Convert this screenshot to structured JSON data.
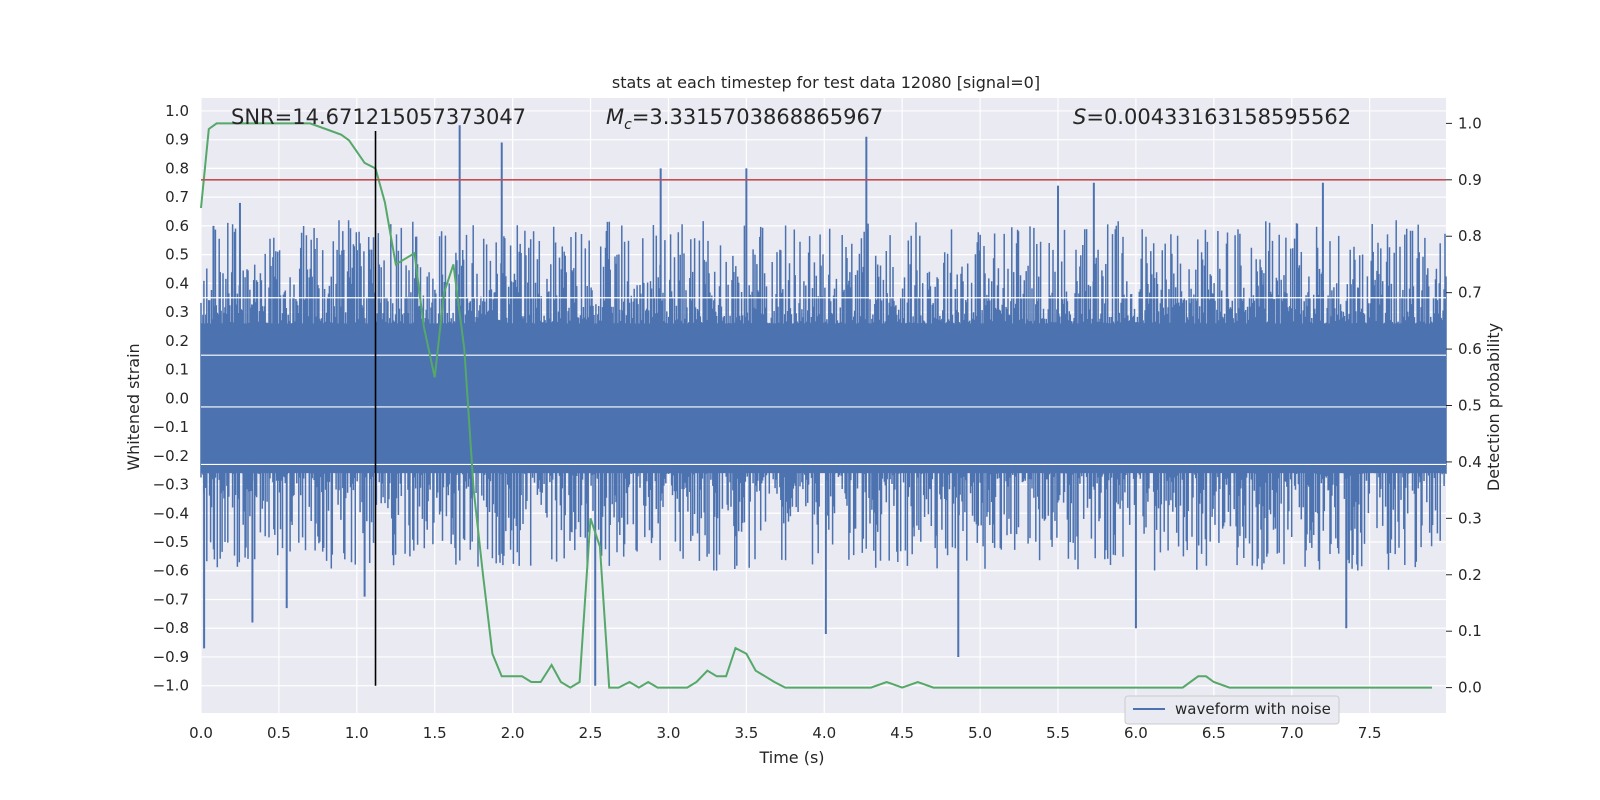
{
  "chart_data": {
    "type": "line",
    "title": "stats at each timestep for test data 12080 [signal=0]",
    "xlabel": "Time (s)",
    "ylabel": "Whitened strain",
    "y2label": "Detection probability",
    "xlim": [
      0.0,
      7.99
    ],
    "ylim": [
      -1.095,
      1.045
    ],
    "y2lim": [
      -0.045,
      1.045
    ],
    "x_ticks": [
      "0.0",
      "0.5",
      "1.0",
      "1.5",
      "2.0",
      "2.5",
      "3.0",
      "3.5",
      "4.0",
      "4.5",
      "5.0",
      "5.5",
      "6.0",
      "6.5",
      "7.0",
      "7.5"
    ],
    "x_tick_values": [
      0.0,
      0.5,
      1.0,
      1.5,
      2.0,
      2.5,
      3.0,
      3.5,
      4.0,
      4.5,
      5.0,
      5.5,
      6.0,
      6.5,
      7.0,
      7.5
    ],
    "y_ticks": [
      "1.0",
      "0.9",
      "0.8",
      "0.7",
      "0.6",
      "0.5",
      "0.4",
      "0.3",
      "0.2",
      "0.1",
      "0.0",
      "−0.1",
      "−0.2",
      "−0.3",
      "−0.4",
      "−0.5",
      "−0.6",
      "−0.7",
      "−0.8",
      "−0.9",
      "−1.0"
    ],
    "y_tick_values": [
      1.0,
      0.9,
      0.8,
      0.7,
      0.6,
      0.5,
      0.4,
      0.3,
      0.2,
      0.1,
      0.0,
      -0.1,
      -0.2,
      -0.3,
      -0.4,
      -0.5,
      -0.6,
      -0.7,
      -0.8,
      -0.9,
      -1.0
    ],
    "y2_ticks": [
      "1.0",
      "0.9",
      "0.8",
      "0.7",
      "0.6",
      "0.5",
      "0.4",
      "0.3",
      "0.2",
      "0.1",
      "0.0"
    ],
    "y2_tick_values": [
      1.0,
      0.9,
      0.8,
      0.7,
      0.6,
      0.5,
      0.4,
      0.3,
      0.2,
      0.1,
      0.0
    ],
    "annotations": {
      "snr": "SNR=14.671215057373047",
      "mc_prefix": "M",
      "mc_sub": "c",
      "mc_value": "=3.3315703868865967",
      "s_prefix": "S",
      "s_value": "=0.00433163158595562"
    },
    "legend": {
      "label": "waveform with noise",
      "placement": "lower-right"
    },
    "threshold_line": {
      "axis": "right",
      "y": 0.9,
      "color": "#c44e52"
    },
    "marker_line": {
      "x": 1.12,
      "y_from": -1.0,
      "y_to": 0.93,
      "color": "#000000"
    },
    "series": [
      {
        "name": "waveform with noise",
        "axis": "left",
        "color": "#4c72b0",
        "envelope_pos_typical": 0.42,
        "envelope_neg_typical": -0.42,
        "spikes": [
          {
            "x": 0.02,
            "y": -0.87
          },
          {
            "x": 0.08,
            "y": 0.6
          },
          {
            "x": 0.33,
            "y": -0.78
          },
          {
            "x": 0.25,
            "y": 0.68
          },
          {
            "x": 0.55,
            "y": -0.73
          },
          {
            "x": 1.05,
            "y": -0.69
          },
          {
            "x": 1.66,
            "y": 0.95
          },
          {
            "x": 1.93,
            "y": 0.89
          },
          {
            "x": 2.53,
            "y": -1.0
          },
          {
            "x": 2.95,
            "y": 0.8
          },
          {
            "x": 3.5,
            "y": 0.8
          },
          {
            "x": 4.01,
            "y": -0.82
          },
          {
            "x": 4.27,
            "y": 0.91
          },
          {
            "x": 4.86,
            "y": -0.9
          },
          {
            "x": 5.5,
            "y": 0.74
          },
          {
            "x": 5.73,
            "y": 0.75
          },
          {
            "x": 6.0,
            "y": -0.8
          },
          {
            "x": 7.2,
            "y": 0.75
          },
          {
            "x": 7.35,
            "y": -0.8
          }
        ]
      },
      {
        "name": "",
        "axis": "right",
        "color": "#55a868",
        "x": [
          0.0,
          0.05,
          0.1,
          0.15,
          0.2,
          0.3,
          0.4,
          0.5,
          0.6,
          0.7,
          0.8,
          0.9,
          0.95,
          1.0,
          1.05,
          1.12,
          1.18,
          1.25,
          1.31,
          1.37,
          1.43,
          1.5,
          1.56,
          1.62,
          1.69,
          1.75,
          1.81,
          1.87,
          1.93,
          2.0,
          2.06,
          2.12,
          2.18,
          2.25,
          2.31,
          2.37,
          2.43,
          2.5,
          2.56,
          2.62,
          2.68,
          2.75,
          2.81,
          2.87,
          2.93,
          3.0,
          3.06,
          3.12,
          3.18,
          3.25,
          3.31,
          3.37,
          3.43,
          3.5,
          3.56,
          3.62,
          3.68,
          3.75,
          3.81,
          3.87,
          3.93,
          4.0,
          4.1,
          4.2,
          4.3,
          4.4,
          4.5,
          4.6,
          4.7,
          4.8,
          4.9,
          5.0,
          5.1,
          5.2,
          5.3,
          5.4,
          5.5,
          5.6,
          5.7,
          5.8,
          5.9,
          6.0,
          6.1,
          6.2,
          6.3,
          6.4,
          6.45,
          6.5,
          6.6,
          6.7,
          6.8,
          6.9,
          7.0,
          7.1,
          7.2,
          7.3,
          7.4,
          7.5,
          7.6,
          7.7,
          7.8,
          7.9
        ],
        "y": [
          0.85,
          0.99,
          1.0,
          1.0,
          1.0,
          1.0,
          1.0,
          1.0,
          1.0,
          1.0,
          0.99,
          0.98,
          0.97,
          0.95,
          0.93,
          0.92,
          0.86,
          0.75,
          0.76,
          0.77,
          0.64,
          0.55,
          0.7,
          0.75,
          0.6,
          0.35,
          0.2,
          0.06,
          0.02,
          0.02,
          0.02,
          0.01,
          0.01,
          0.04,
          0.01,
          0.0,
          0.01,
          0.3,
          0.25,
          0.0,
          0.0,
          0.01,
          0.0,
          0.01,
          0.0,
          0.0,
          0.0,
          0.0,
          0.01,
          0.03,
          0.02,
          0.02,
          0.07,
          0.06,
          0.03,
          0.02,
          0.01,
          0.0,
          0.0,
          0.0,
          0.0,
          0.0,
          0.0,
          0.0,
          0.0,
          0.01,
          0.0,
          0.01,
          0.0,
          0.0,
          0.0,
          0.0,
          0.0,
          0.0,
          0.0,
          0.0,
          0.0,
          0.0,
          0.0,
          0.0,
          0.0,
          0.0,
          0.0,
          0.0,
          0.0,
          0.02,
          0.02,
          0.01,
          0.0,
          0.0,
          0.0,
          0.0,
          0.0,
          0.0,
          0.0,
          0.0,
          0.0,
          0.0,
          0.0,
          0.0,
          0.0,
          0.0
        ]
      }
    ],
    "grid": true,
    "colors": {
      "background": "#eaeaf2",
      "grid": "#ffffff",
      "text": "#262626"
    }
  }
}
